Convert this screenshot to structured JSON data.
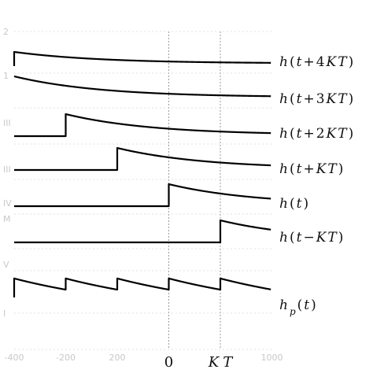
{
  "chart_data": {
    "type": "line",
    "title": "",
    "xlabel": "",
    "ylabel": "",
    "x_range": [
      -3,
      2
    ],
    "vertical_guides_at": [
      0,
      1
    ],
    "x_ticks": [
      {
        "x": -3,
        "label": "-400",
        "style": "faint"
      },
      {
        "x": -2,
        "label": "-200",
        "style": "faint"
      },
      {
        "x": -1,
        "label": "200",
        "style": "faint"
      },
      {
        "x": 0,
        "label": "0",
        "style": "main"
      },
      {
        "x": 1,
        "label": "KT",
        "style": "main"
      },
      {
        "x": 2,
        "label": "1000",
        "style": "faint"
      }
    ],
    "y_faint_ticks": [
      "2",
      "1",
      "III",
      "III",
      "IV",
      "M",
      "V",
      "I"
    ],
    "pulse": {
      "peak": 1.0,
      "decay_per_period": 0.55,
      "tail_floor": 0.05
    },
    "series": [
      {
        "label_parts": [
          "h",
          "(",
          "t",
          "+",
          "4",
          "K",
          "T",
          ")"
        ],
        "shift": 4,
        "periodic": false
      },
      {
        "label_parts": [
          "h",
          "(",
          "t",
          "+",
          "3",
          "K",
          "T",
          ")"
        ],
        "shift": 3,
        "periodic": false
      },
      {
        "label_parts": [
          "h",
          "(",
          "t",
          "+",
          "2",
          "K",
          "T",
          ")"
        ],
        "shift": 2,
        "periodic": false
      },
      {
        "label_parts": [
          "h",
          "(",
          "t",
          "+",
          "K",
          "T",
          ")"
        ],
        "shift": 1,
        "periodic": false
      },
      {
        "label_parts": [
          "h",
          "(",
          "t",
          ")"
        ],
        "shift": 0,
        "periodic": false
      },
      {
        "label_parts": [
          "h",
          "(",
          "t",
          "−",
          "K",
          "T",
          ")"
        ],
        "shift": -1,
        "periodic": false
      },
      {
        "label_parts": [
          "h",
          "p",
          "(",
          "t",
          ")"
        ],
        "shift": 0,
        "periodic": true
      }
    ],
    "colors": {
      "curve": "#000000",
      "guide": "#9a9a9a",
      "faint": "#c8c8c8"
    },
    "grid": false,
    "legend": "none"
  }
}
